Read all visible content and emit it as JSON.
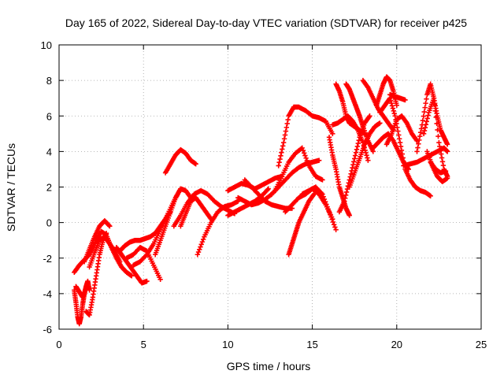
{
  "chart_data": {
    "type": "scatter",
    "title": "Day 165 of 2022, Sidereal Day-to-day VTEC variation (SDTVAR) for receiver p425",
    "xlabel": "GPS time / hours",
    "ylabel": "SDTVAR / TECUs",
    "xlim": [
      0,
      25
    ],
    "ylim": [
      -6,
      10
    ],
    "xticks": [
      0,
      5,
      10,
      15,
      20,
      25
    ],
    "yticks": [
      -6,
      -4,
      -2,
      0,
      2,
      4,
      6,
      8,
      10
    ],
    "grid": true,
    "marker": "+",
    "color": "#ff0000",
    "series": [
      {
        "x": [
          0.9,
          1.2,
          1.5,
          1.8,
          2.1,
          2.4
        ],
        "y": [
          -2.8,
          -2.4,
          -2.1,
          -1.8,
          -1.2,
          -0.8
        ]
      },
      {
        "x": [
          0.9,
          1.0,
          1.1,
          1.2,
          1.3,
          1.4,
          1.5
        ],
        "y": [
          -3.8,
          -4.5,
          -5.3,
          -5.7,
          -5.3,
          -4.6,
          -4.0
        ]
      },
      {
        "x": [
          1.0,
          1.2,
          1.4,
          1.5,
          1.6,
          1.7,
          1.8
        ],
        "y": [
          -3.6,
          -3.9,
          -4.2,
          -4.0,
          -3.6,
          -3.3,
          -3.8
        ]
      },
      {
        "x": [
          1.6,
          1.8,
          2.0,
          2.2,
          2.4,
          2.6,
          2.8
        ],
        "y": [
          -5.0,
          -5.2,
          -4.2,
          -3.0,
          -1.8,
          -1.0,
          -0.6
        ]
      },
      {
        "x": [
          1.5,
          1.8,
          2.1,
          2.4,
          2.7,
          3.0
        ],
        "y": [
          -2.2,
          -1.5,
          -0.8,
          -0.2,
          0.1,
          -0.2
        ]
      },
      {
        "x": [
          1.8,
          2.1,
          2.4,
          2.7,
          3.0,
          3.3,
          3.6
        ],
        "y": [
          -2.5,
          -1.7,
          -1.0,
          -0.8,
          -1.2,
          -1.6,
          -2.2
        ]
      },
      {
        "x": [
          2.2,
          2.5,
          2.8,
          3.1,
          3.4,
          3.7,
          4.0,
          4.3
        ],
        "y": [
          -1.0,
          -0.5,
          -0.7,
          -1.4,
          -2.0,
          -2.5,
          -2.8,
          -3.0
        ]
      },
      {
        "x": [
          3.4,
          3.7,
          4.0,
          4.3,
          4.6,
          4.9,
          5.2
        ],
        "y": [
          -1.4,
          -1.8,
          -2.2,
          -2.6,
          -3.0,
          -3.4,
          -3.3
        ]
      },
      {
        "x": [
          4.0,
          4.4,
          4.8,
          5.2,
          5.6,
          6.0
        ],
        "y": [
          -2.0,
          -1.8,
          -1.4,
          -1.6,
          -2.4,
          -3.2
        ]
      },
      {
        "x": [
          3.6,
          3.9,
          4.2,
          4.5,
          4.8,
          5.1,
          5.4,
          5.7,
          6.0,
          6.3,
          6.6
        ],
        "y": [
          -1.6,
          -1.3,
          -1.1,
          -1.0,
          -1.0,
          -0.9,
          -0.8,
          -0.6,
          -0.2,
          0.2,
          0.6
        ]
      },
      {
        "x": [
          4.4,
          4.8,
          5.2,
          5.6,
          6.0,
          6.4,
          6.8,
          7.2
        ],
        "y": [
          -2.4,
          -2.2,
          -1.8,
          -1.2,
          -0.4,
          0.4,
          1.2,
          1.9
        ]
      },
      {
        "x": [
          5.7,
          6.0,
          6.3,
          6.6,
          6.9,
          7.2,
          7.5,
          7.8
        ],
        "y": [
          -1.8,
          -1.0,
          -0.2,
          0.6,
          1.4,
          1.9,
          1.8,
          1.4
        ]
      },
      {
        "x": [
          6.3,
          6.6,
          6.9,
          7.2,
          7.5,
          7.8,
          8.1
        ],
        "y": [
          2.8,
          3.3,
          3.8,
          4.1,
          3.9,
          3.5,
          3.3
        ]
      },
      {
        "x": [
          6.8,
          7.2,
          7.6,
          8.0,
          8.4,
          8.8,
          9.2,
          9.6,
          10.0,
          10.4
        ],
        "y": [
          -0.2,
          0.4,
          1.1,
          1.6,
          1.8,
          1.6,
          1.2,
          0.9,
          0.7,
          0.5
        ]
      },
      {
        "x": [
          7.2,
          7.5,
          7.8,
          8.1,
          8.4,
          8.7,
          9.0
        ],
        "y": [
          -0.2,
          0.5,
          1.2,
          1.4,
          1.0,
          0.6,
          0.2
        ]
      },
      {
        "x": [
          8.2,
          8.6,
          9.0,
          9.4,
          9.8,
          10.2,
          10.6
        ],
        "y": [
          -1.8,
          -0.8,
          0.0,
          0.6,
          0.9,
          1.0,
          1.2
        ]
      },
      {
        "x": [
          10.0,
          10.4,
          10.8,
          11.2,
          11.6,
          12.0,
          12.4,
          12.8,
          13.2
        ],
        "y": [
          1.8,
          2.0,
          2.2,
          2.1,
          1.9,
          2.1,
          2.3,
          2.5,
          2.6
        ]
      },
      {
        "x": [
          10.0,
          10.4,
          10.8,
          11.2,
          11.6,
          12.0,
          12.4
        ],
        "y": [
          0.4,
          0.6,
          0.8,
          1.0,
          1.2,
          1.5,
          1.9
        ]
      },
      {
        "x": [
          10.6,
          11.0,
          11.4,
          11.8,
          12.2,
          12.6,
          13.0
        ],
        "y": [
          1.4,
          1.2,
          1.0,
          1.1,
          1.3,
          1.6,
          2.0
        ]
      },
      {
        "x": [
          11.0,
          11.4,
          11.8,
          12.2,
          12.6,
          13.0,
          13.4,
          13.8
        ],
        "y": [
          2.4,
          2.0,
          1.6,
          1.2,
          1.0,
          0.9,
          0.8,
          0.8
        ]
      },
      {
        "x": [
          12.6,
          13.0,
          13.4,
          13.8,
          14.2,
          14.6,
          15.0,
          15.4
        ],
        "y": [
          1.6,
          2.0,
          2.4,
          2.8,
          3.1,
          3.3,
          3.4,
          3.5
        ]
      },
      {
        "x": [
          12.8,
          13.2,
          13.6,
          14.0,
          14.4,
          14.8,
          15.2,
          15.6
        ],
        "y": [
          1.8,
          2.6,
          3.4,
          3.9,
          4.2,
          3.2,
          2.6,
          2.4
        ]
      },
      {
        "x": [
          13.0,
          13.3,
          13.6,
          13.9,
          14.2,
          14.6,
          15.0,
          15.4,
          15.8,
          16.2
        ],
        "y": [
          3.2,
          4.5,
          6.0,
          6.5,
          6.5,
          6.3,
          6.0,
          5.9,
          5.7,
          5.0
        ]
      },
      {
        "x": [
          13.6,
          13.8,
          14.0,
          14.2,
          14.5,
          14.8,
          15.1
        ],
        "y": [
          -1.8,
          -1.2,
          -0.6,
          0.0,
          0.6,
          1.2,
          1.6
        ]
      },
      {
        "x": [
          13.4,
          13.8,
          14.2,
          14.6,
          15.0,
          15.4,
          15.8,
          16.2
        ],
        "y": [
          0.6,
          1.0,
          1.4,
          1.6,
          1.9,
          1.6,
          1.0,
          0.2
        ]
      },
      {
        "x": [
          14.4,
          14.8,
          15.2,
          15.6,
          16.0,
          16.4
        ],
        "y": [
          1.6,
          1.8,
          2.0,
          1.6,
          0.6,
          -0.4
        ]
      },
      {
        "x": [
          16.0,
          16.2,
          16.4,
          16.6,
          16.8,
          17.0,
          17.2
        ],
        "y": [
          4.8,
          3.8,
          3.0,
          2.0,
          1.4,
          0.8,
          0.4
        ]
      },
      {
        "x": [
          16.4,
          16.6,
          16.8,
          17.0,
          17.2,
          17.5,
          17.8,
          18.1
        ],
        "y": [
          7.8,
          7.4,
          6.8,
          6.0,
          5.6,
          5.4,
          5.2,
          5.0
        ]
      },
      {
        "x": [
          16.2,
          16.5,
          16.8,
          17.1,
          17.4,
          17.7,
          18.0,
          18.3
        ],
        "y": [
          5.5,
          5.6,
          5.8,
          6.0,
          5.7,
          5.2,
          4.5,
          3.5
        ]
      },
      {
        "x": [
          16.6,
          16.9,
          17.2,
          17.5,
          17.8,
          18.1,
          18.4
        ],
        "y": [
          0.6,
          1.2,
          2.4,
          3.6,
          4.8,
          5.6,
          6.0
        ]
      },
      {
        "x": [
          17.0,
          17.2,
          17.4,
          17.6,
          17.8,
          18.0,
          18.3,
          18.6
        ],
        "y": [
          7.8,
          7.5,
          7.0,
          6.5,
          6.0,
          5.4,
          4.6,
          4.0
        ]
      },
      {
        "x": [
          17.2,
          17.5,
          17.8,
          18.1,
          18.4,
          18.7,
          19.0
        ],
        "y": [
          2.0,
          2.8,
          3.6,
          4.4,
          5.0,
          5.4,
          5.6
        ]
      },
      {
        "x": [
          18.0,
          18.3,
          18.6,
          18.9,
          19.2,
          19.5,
          19.8
        ],
        "y": [
          8.0,
          7.6,
          7.0,
          6.4,
          6.0,
          5.6,
          5.2
        ]
      },
      {
        "x": [
          18.8,
          19.0,
          19.2,
          19.4,
          19.6,
          19.8,
          20.0
        ],
        "y": [
          6.6,
          7.2,
          7.8,
          8.2,
          8.0,
          7.4,
          6.6
        ]
      },
      {
        "x": [
          19.6,
          19.9,
          20.2,
          20.5
        ],
        "y": [
          7.2,
          7.1,
          7.0,
          6.9
        ]
      },
      {
        "x": [
          18.6,
          18.9,
          19.2,
          19.5,
          19.8,
          20.1,
          20.4,
          20.7
        ],
        "y": [
          4.2,
          4.5,
          4.8,
          5.0,
          4.6,
          4.0,
          3.4,
          3.0
        ]
      },
      {
        "x": [
          19.0,
          19.3,
          19.6,
          19.9,
          20.2,
          20.5,
          20.8,
          21.1,
          21.4,
          21.7,
          22.0
        ],
        "y": [
          6.2,
          6.6,
          7.0,
          6.0,
          4.5,
          3.0,
          2.4,
          2.0,
          1.8,
          1.7,
          1.5
        ]
      },
      {
        "x": [
          19.4,
          19.7,
          20.0,
          20.3,
          20.6,
          20.9,
          21.2
        ],
        "y": [
          4.4,
          5.0,
          5.8,
          6.0,
          5.6,
          5.0,
          4.6
        ]
      },
      {
        "x": [
          20.4,
          20.8,
          21.2,
          21.6,
          22.0,
          22.4,
          22.8,
          23.0
        ],
        "y": [
          3.2,
          3.3,
          3.4,
          3.6,
          3.8,
          4.0,
          4.2,
          4.0
        ]
      },
      {
        "x": [
          21.2,
          21.5,
          21.8,
          22.0,
          22.2,
          22.4,
          22.6,
          22.8,
          23.0
        ],
        "y": [
          4.0,
          5.5,
          7.2,
          7.8,
          7.0,
          6.0,
          5.2,
          4.8,
          4.4
        ]
      },
      {
        "x": [
          21.6,
          21.9,
          22.2,
          22.5,
          22.8,
          23.0
        ],
        "y": [
          5.0,
          6.2,
          7.0,
          4.5,
          3.0,
          2.6
        ]
      },
      {
        "x": [
          21.8,
          22.1,
          22.4,
          22.7,
          23.0
        ],
        "y": [
          4.0,
          3.2,
          2.6,
          2.3,
          2.5
        ]
      },
      {
        "x": [
          22.0,
          22.3,
          22.6,
          22.9
        ],
        "y": [
          3.4,
          3.0,
          2.8,
          2.9
        ]
      }
    ]
  }
}
